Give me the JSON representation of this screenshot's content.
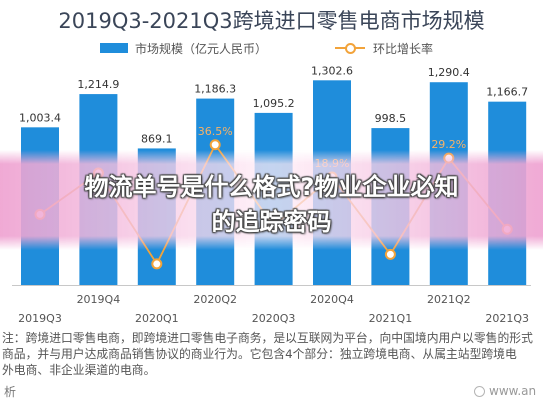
{
  "chart_data": {
    "type": "bar",
    "title": "2019Q3-2021Q3跨境进口零售电商市场规模",
    "categories": [
      "2019Q3",
      "2019Q4",
      "2020Q1",
      "2020Q2",
      "2020Q3",
      "2020Q4",
      "2021Q1",
      "2021Q2",
      "2021Q3"
    ],
    "series": [
      {
        "name": "市场规模（亿元人民币）",
        "type": "bar",
        "color": "#1f8ddb",
        "values": [
          1003.4,
          1214.9,
          869.1,
          1186.3,
          1095.2,
          1302.6,
          998.5,
          1290.4,
          1166.7
        ],
        "labels": [
          "1,003.4",
          "1,214.9",
          "869.1",
          "1,186.3",
          "1,095.2",
          "1,302.6",
          "998.5",
          "1,290.4",
          "1,166.7"
        ]
      },
      {
        "name": "环比增长率",
        "type": "line",
        "color": "#f2a33a",
        "values": [
          -1.5,
          21.1,
          -28.5,
          36.5,
          -7.7,
          18.9,
          -23.3,
          29.2,
          -9.6
        ],
        "labels": [
          null,
          null,
          null,
          "36.5%",
          null,
          "18.9%",
          null,
          "29.2%",
          null
        ]
      }
    ],
    "ylim": [
      0,
      1400
    ],
    "y2lim": [
      -40,
      80
    ],
    "grid": false,
    "legend_position": "top-center"
  },
  "notes": [
    "注：跨境进口零售电商，即跨境进口零售电子商务，是以互联网为平台，向中国境内用户以零售的形式",
    "商品，并与用户达成商品销售协议的商业行为。它包含4个部分：独立跨境电商、从属主站型跨境电",
    "外电商、非企业渠道的电商。"
  ],
  "footer": {
    "source_fragment": "析",
    "url_fragment": "www.an"
  },
  "overlay": {
    "line1": "物流单号是什么格式?物业企业必知",
    "line2": "的追踪密码"
  }
}
